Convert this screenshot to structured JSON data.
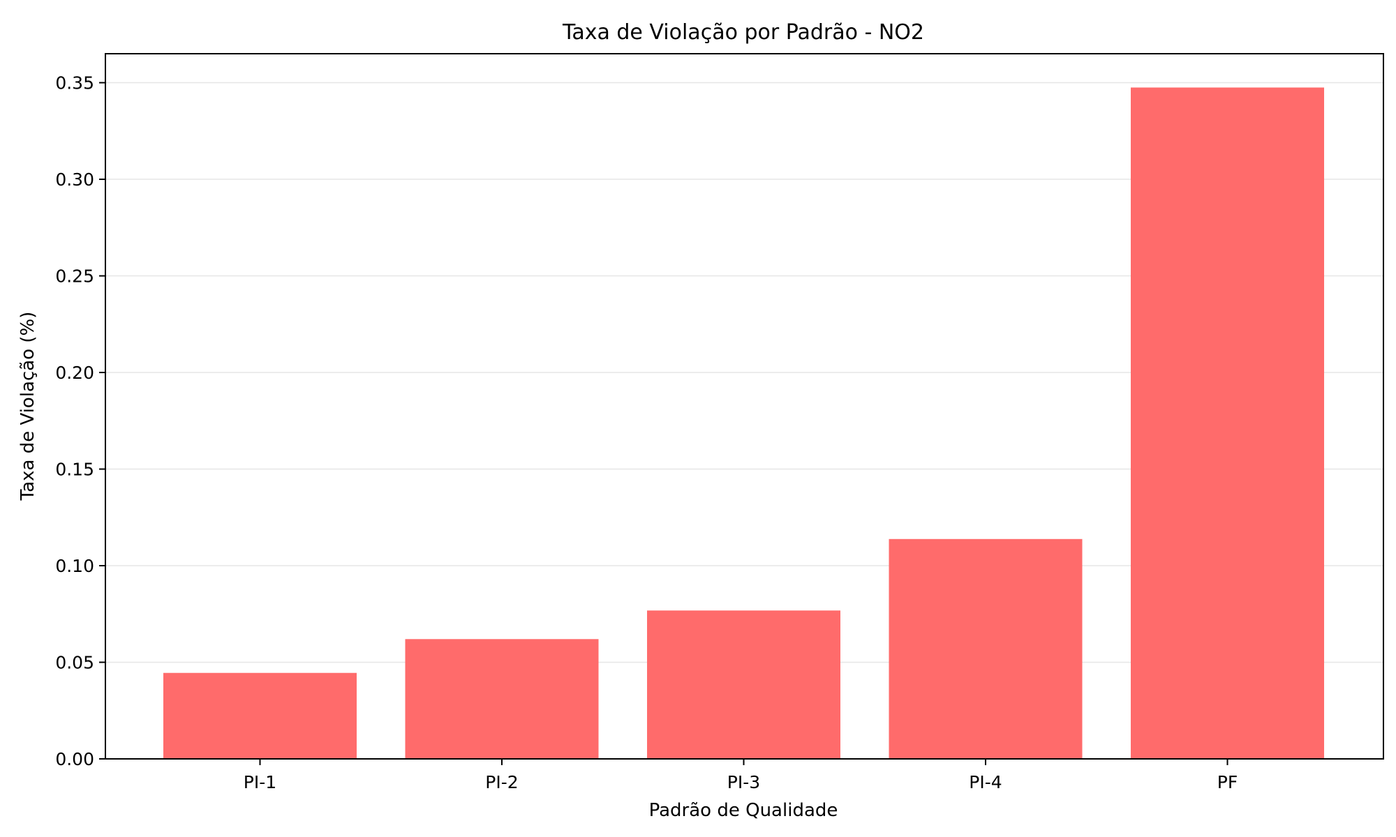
{
  "chart_data": {
    "type": "bar",
    "title": "Taxa de Violação por Padrão - NO2",
    "xlabel": "Padrão de Qualidade",
    "ylabel": "Taxa de Violação (%)",
    "categories": [
      "PI-1",
      "PI-2",
      "PI-3",
      "PI-4",
      "PF"
    ],
    "values": [
      0.0445,
      0.062,
      0.0768,
      0.1138,
      0.3475
    ],
    "ylim": [
      0,
      0.365
    ],
    "yticks": [
      "0.00",
      "0.05",
      "0.10",
      "0.15",
      "0.20",
      "0.25",
      "0.30",
      "0.35"
    ],
    "ytick_values": [
      0,
      0.05,
      0.1,
      0.15,
      0.2,
      0.25,
      0.3,
      0.35
    ],
    "grid": "y",
    "bar_color": "#ff6b6b",
    "grid_color": "#e6e6e6"
  }
}
